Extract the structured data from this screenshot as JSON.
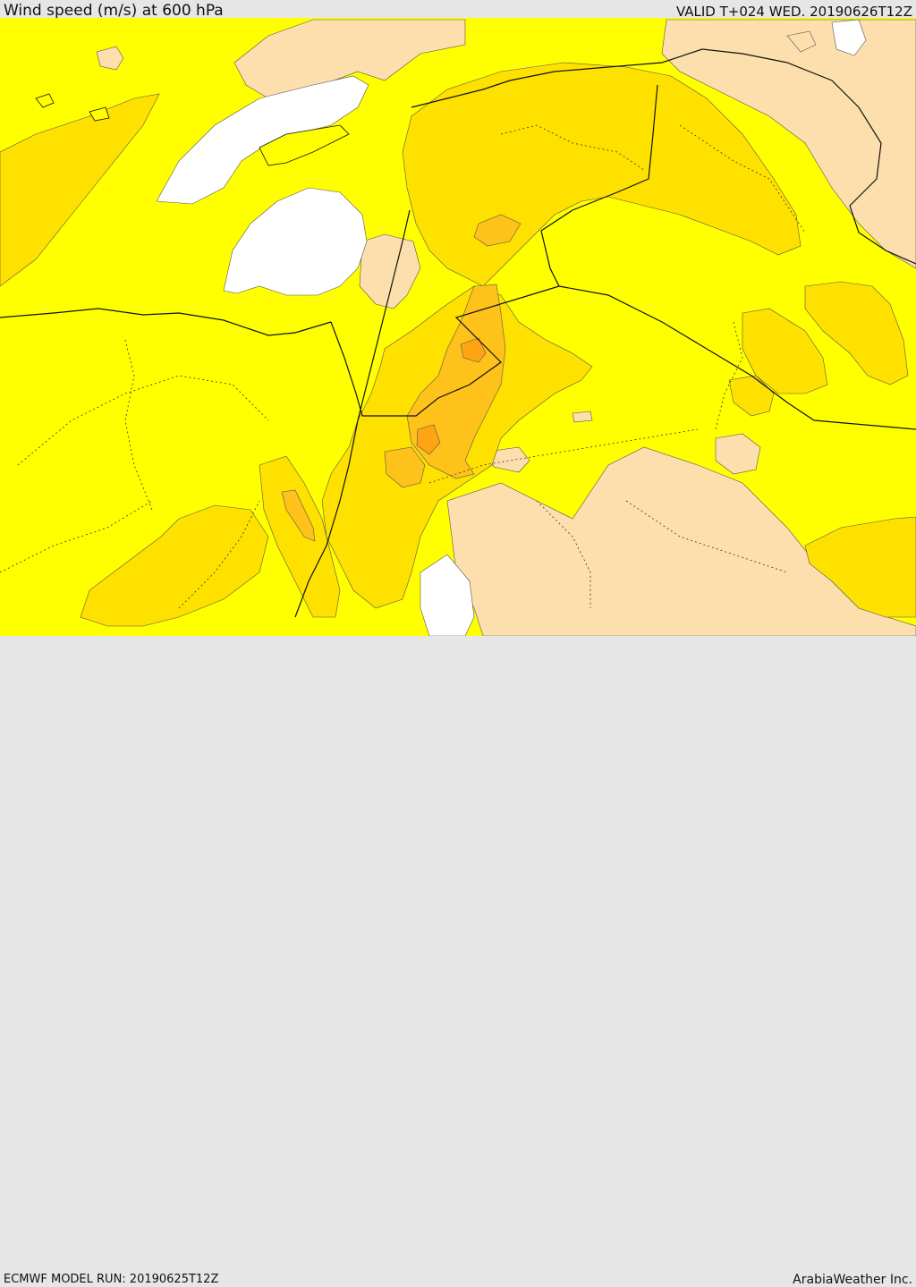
{
  "header": {
    "title": "Wind speed (m/s) at 600 hPa",
    "valid_time": "VALID T+024 WED. 20190626T12Z"
  },
  "footer": {
    "model_run": "ECMWF MODEL RUN: 20190625T12Z",
    "credit": "ArabiaWeather Inc."
  },
  "map": {
    "variable": "wind speed",
    "level": "600 hPa",
    "units": "m/s",
    "colors": {
      "calm": "#ffffff",
      "light": "#fcdfad",
      "moderate": "#ffff00",
      "fresh": "#ffe100",
      "strong": "#ffc21a",
      "very_strong": "#ffa514",
      "border": "#111111"
    }
  }
}
